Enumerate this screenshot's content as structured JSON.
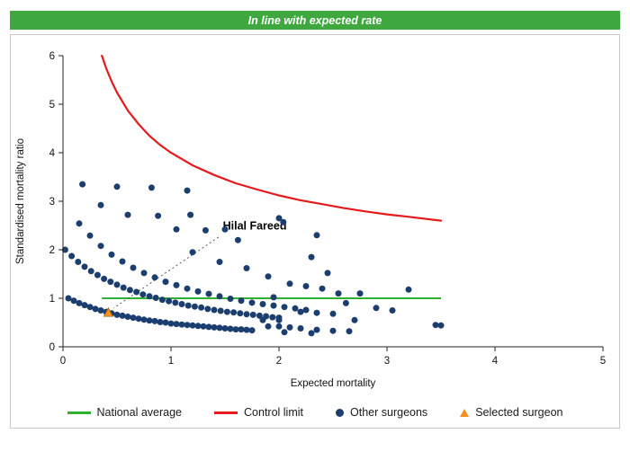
{
  "header": {
    "title": "In line with expected rate",
    "bg_color": "#3ea83e"
  },
  "legend": {
    "items": [
      {
        "label": "National average",
        "type": "line",
        "color": "#30b030"
      },
      {
        "label": "Control limit",
        "type": "line",
        "color": "#e41a1c"
      },
      {
        "label": "Other surgeons",
        "type": "dot",
        "color": "#1b3e6f"
      },
      {
        "label": "Selected surgeon",
        "type": "triangle",
        "color": "#f59120"
      }
    ]
  },
  "chart_data": {
    "type": "scatter",
    "title": "In line with expected rate",
    "xlabel": "Expected mortality",
    "ylabel": "Standardised mortality ratio",
    "xlim": [
      0,
      5
    ],
    "ylim": [
      0,
      6
    ],
    "x_ticks": [
      0,
      1,
      2,
      3,
      4,
      5
    ],
    "y_ticks": [
      0,
      1,
      2,
      3,
      4,
      5,
      6
    ],
    "grid": false,
    "legend_position": "bottom",
    "national_average": {
      "label": "National average",
      "color": "#30b030",
      "y": 1.0,
      "x_start": 0.36,
      "x_end": 3.5
    },
    "control_limit": {
      "label": "Control limit",
      "color": "#e41a1c",
      "points": [
        [
          0.36,
          6.0
        ],
        [
          0.4,
          5.74
        ],
        [
          0.45,
          5.47
        ],
        [
          0.5,
          5.24
        ],
        [
          0.6,
          4.87
        ],
        [
          0.7,
          4.59
        ],
        [
          0.8,
          4.35
        ],
        [
          0.9,
          4.16
        ],
        [
          1.0,
          4.0
        ],
        [
          1.2,
          3.74
        ],
        [
          1.4,
          3.54
        ],
        [
          1.6,
          3.37
        ],
        [
          1.8,
          3.24
        ],
        [
          2.0,
          3.12
        ],
        [
          2.2,
          3.02
        ],
        [
          2.4,
          2.94
        ],
        [
          2.6,
          2.86
        ],
        [
          2.8,
          2.79
        ],
        [
          3.0,
          2.73
        ],
        [
          3.2,
          2.68
        ],
        [
          3.5,
          2.6
        ]
      ]
    },
    "other_surgeons": {
      "label": "Other surgeons",
      "color": "#1b3e6f",
      "points": [
        [
          0.05,
          1.0
        ],
        [
          0.1,
          0.95
        ],
        [
          0.15,
          0.9
        ],
        [
          0.2,
          0.86
        ],
        [
          0.25,
          0.82
        ],
        [
          0.3,
          0.78
        ],
        [
          0.35,
          0.75
        ],
        [
          0.4,
          0.72
        ],
        [
          0.45,
          0.69
        ],
        [
          0.5,
          0.66
        ],
        [
          0.55,
          0.64
        ],
        [
          0.6,
          0.62
        ],
        [
          0.65,
          0.6
        ],
        [
          0.7,
          0.58
        ],
        [
          0.75,
          0.56
        ],
        [
          0.8,
          0.54
        ],
        [
          0.85,
          0.53
        ],
        [
          0.9,
          0.51
        ],
        [
          0.95,
          0.5
        ],
        [
          1.0,
          0.48
        ],
        [
          1.05,
          0.47
        ],
        [
          1.1,
          0.46
        ],
        [
          1.15,
          0.45
        ],
        [
          1.2,
          0.44
        ],
        [
          1.25,
          0.43
        ],
        [
          1.3,
          0.42
        ],
        [
          1.35,
          0.41
        ],
        [
          1.4,
          0.4
        ],
        [
          1.45,
          0.39
        ],
        [
          1.5,
          0.38
        ],
        [
          1.55,
          0.37
        ],
        [
          1.6,
          0.36
        ],
        [
          1.65,
          0.36
        ],
        [
          1.7,
          0.35
        ],
        [
          1.75,
          0.34
        ],
        [
          0.02,
          2.0
        ],
        [
          0.08,
          1.87
        ],
        [
          0.14,
          1.75
        ],
        [
          0.2,
          1.65
        ],
        [
          0.26,
          1.56
        ],
        [
          0.32,
          1.48
        ],
        [
          0.38,
          1.4
        ],
        [
          0.44,
          1.34
        ],
        [
          0.5,
          1.28
        ],
        [
          0.56,
          1.22
        ],
        [
          0.62,
          1.17
        ],
        [
          0.68,
          1.13
        ],
        [
          0.74,
          1.08
        ],
        [
          0.8,
          1.04
        ],
        [
          0.86,
          1.01
        ],
        [
          0.92,
          0.97
        ],
        [
          0.98,
          0.94
        ],
        [
          1.04,
          0.91
        ],
        [
          1.1,
          0.88
        ],
        [
          1.16,
          0.85
        ],
        [
          1.22,
          0.83
        ],
        [
          1.28,
          0.81
        ],
        [
          1.34,
          0.78
        ],
        [
          1.4,
          0.76
        ],
        [
          1.46,
          0.74
        ],
        [
          1.52,
          0.72
        ],
        [
          1.58,
          0.71
        ],
        [
          1.64,
          0.69
        ],
        [
          1.7,
          0.67
        ],
        [
          1.76,
          0.66
        ],
        [
          1.82,
          0.64
        ],
        [
          1.88,
          0.63
        ],
        [
          1.94,
          0.61
        ],
        [
          2.0,
          0.6
        ],
        [
          0.15,
          2.54
        ],
        [
          0.25,
          2.29
        ],
        [
          0.35,
          2.08
        ],
        [
          0.45,
          1.9
        ],
        [
          0.55,
          1.76
        ],
        [
          0.65,
          1.63
        ],
        [
          0.75,
          1.52
        ],
        [
          0.85,
          1.43
        ],
        [
          0.95,
          1.34
        ],
        [
          1.05,
          1.27
        ],
        [
          1.15,
          1.2
        ],
        [
          1.25,
          1.14
        ],
        [
          1.35,
          1.09
        ],
        [
          1.45,
          1.04
        ],
        [
          1.55,
          0.99
        ],
        [
          1.65,
          0.95
        ],
        [
          1.75,
          0.91
        ],
        [
          1.85,
          0.88
        ],
        [
          1.95,
          0.85
        ],
        [
          2.05,
          0.82
        ],
        [
          2.15,
          0.79
        ],
        [
          2.25,
          0.76
        ],
        [
          0.18,
          3.35
        ],
        [
          0.5,
          3.3
        ],
        [
          0.82,
          3.28
        ],
        [
          1.15,
          3.22
        ],
        [
          0.35,
          2.92
        ],
        [
          0.6,
          2.72
        ],
        [
          0.88,
          2.7
        ],
        [
          1.18,
          2.72
        ],
        [
          1.05,
          2.42
        ],
        [
          1.32,
          2.4
        ],
        [
          1.5,
          2.42
        ],
        [
          1.62,
          2.2
        ],
        [
          1.2,
          1.95
        ],
        [
          1.45,
          1.75
        ],
        [
          1.7,
          1.62
        ],
        [
          1.9,
          1.45
        ],
        [
          2.0,
          2.65
        ],
        [
          2.04,
          2.57
        ],
        [
          2.35,
          2.3
        ],
        [
          2.3,
          1.85
        ],
        [
          2.45,
          1.52
        ],
        [
          2.1,
          1.3
        ],
        [
          2.25,
          1.25
        ],
        [
          2.4,
          1.2
        ],
        [
          2.55,
          1.1
        ],
        [
          2.75,
          1.1
        ],
        [
          3.2,
          1.18
        ],
        [
          2.62,
          0.9
        ],
        [
          2.9,
          0.8
        ],
        [
          3.05,
          0.75
        ],
        [
          2.2,
          0.72
        ],
        [
          2.35,
          0.7
        ],
        [
          2.5,
          0.68
        ],
        [
          1.85,
          0.55
        ],
        [
          2.0,
          0.55
        ],
        [
          2.7,
          0.55
        ],
        [
          1.9,
          0.42
        ],
        [
          2.0,
          0.42
        ],
        [
          2.1,
          0.4
        ],
        [
          2.2,
          0.38
        ],
        [
          2.35,
          0.35
        ],
        [
          2.5,
          0.33
        ],
        [
          2.65,
          0.32
        ],
        [
          3.45,
          0.45
        ],
        [
          3.5,
          0.44
        ],
        [
          2.05,
          0.3
        ],
        [
          2.3,
          0.28
        ],
        [
          1.95,
          1.02
        ]
      ]
    },
    "selected_surgeon": {
      "label": "Selected surgeon",
      "color": "#f59120",
      "point": [
        0.42,
        0.7
      ],
      "annotation": "Hilal Fareed",
      "annotation_pos": [
        1.48,
        2.42
      ],
      "annotation_line": {
        "from": [
          1.44,
          2.26
        ],
        "to": [
          0.47,
          0.8
        ]
      }
    }
  }
}
